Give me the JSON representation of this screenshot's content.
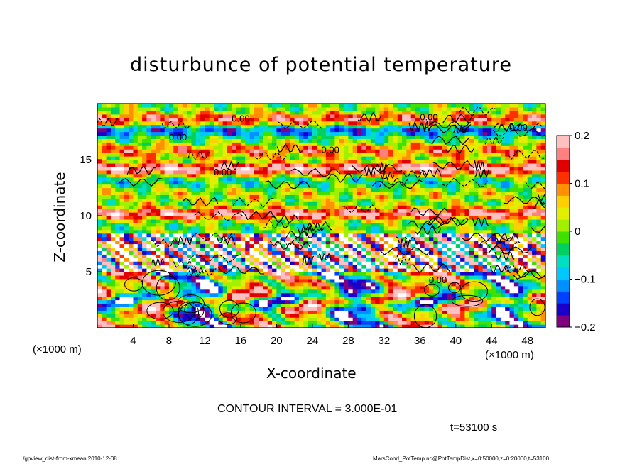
{
  "chart_data": {
    "type": "heatmap",
    "title": "disturbunce of potential temperature",
    "xlabel": "X-coordinate",
    "ylabel": "Z-coordinate",
    "x_unit_label": "(×1000 m)",
    "z_unit_label": "(×1000 m)",
    "xlim": [
      0,
      50
    ],
    "ylim": [
      0,
      20
    ],
    "x_ticks": [
      "4",
      "8",
      "12",
      "16",
      "20",
      "24",
      "28",
      "32",
      "36",
      "40",
      "44",
      "48"
    ],
    "y_ticks": [
      "5",
      "10",
      "15"
    ],
    "colorbar": {
      "range": [
        -0.2,
        0.2
      ],
      "tick_labels": [
        "0.2",
        "0.1",
        "0",
        "−0.1",
        "−0.2"
      ],
      "colors": [
        "#800080",
        "#1a00c8",
        "#0040ff",
        "#0090ff",
        "#00c8ff",
        "#00e0c0",
        "#00d060",
        "#40e000",
        "#a0f000",
        "#e0f000",
        "#ffd000",
        "#ff9000",
        "#ff3000",
        "#e00000",
        "#ff8080",
        "#ffc0c0"
      ]
    },
    "contour_labels": [
      "0.00",
      "0.00",
      "0.00",
      "0.00",
      "0.00",
      "0.00",
      "0.00"
    ],
    "notes": {
      "contour_interval": "CONTOUR INTERVAL = 3.000E-01",
      "time": "t=53100 s"
    }
  },
  "footer": {
    "left": "./gpview_dist-from-xmean  2010-12-08",
    "right": "MarsCond_PotTemp.nc@PotTempDist,x=0:50000,z=0:20000,t=53100"
  }
}
